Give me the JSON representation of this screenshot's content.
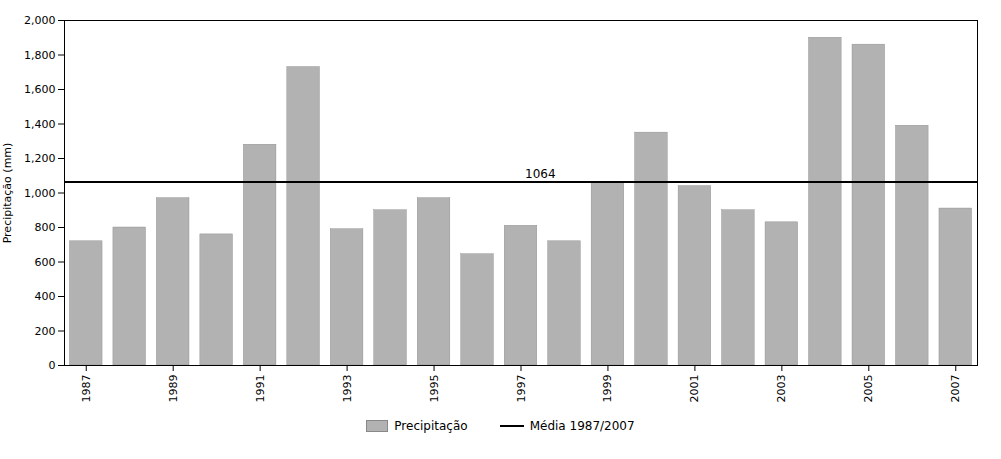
{
  "chart_data": {
    "type": "bar",
    "x": [
      1987,
      1988,
      1989,
      1990,
      1991,
      1992,
      1993,
      1994,
      1995,
      1996,
      1997,
      1998,
      1999,
      2000,
      2001,
      2002,
      2003,
      2004,
      2005,
      2006,
      2007
    ],
    "series": [
      {
        "name": "Precipitação",
        "type": "bar",
        "color": "#b2b2b2",
        "values": [
          720,
          800,
          970,
          760,
          1280,
          1730,
          790,
          900,
          970,
          645,
          810,
          720,
          1060,
          1350,
          1040,
          900,
          830,
          1900,
          1860,
          1390,
          910
        ]
      }
    ],
    "mean_line": {
      "name": "Média 1987/2007",
      "value": 1064,
      "label": "1064",
      "color": "#000000"
    },
    "ylabel": "Precipitação (mm)",
    "xlim": [
      1986.5,
      2007.5
    ],
    "xticks": [
      1987,
      1989,
      1991,
      1993,
      1995,
      1997,
      1999,
      2001,
      2003,
      2005,
      2007
    ],
    "ylim": [
      0,
      2000
    ],
    "yticks": [
      0,
      200,
      400,
      600,
      800,
      1000,
      1200,
      1400,
      1600,
      1800,
      2000
    ],
    "grid": false,
    "legend": "bottom"
  }
}
